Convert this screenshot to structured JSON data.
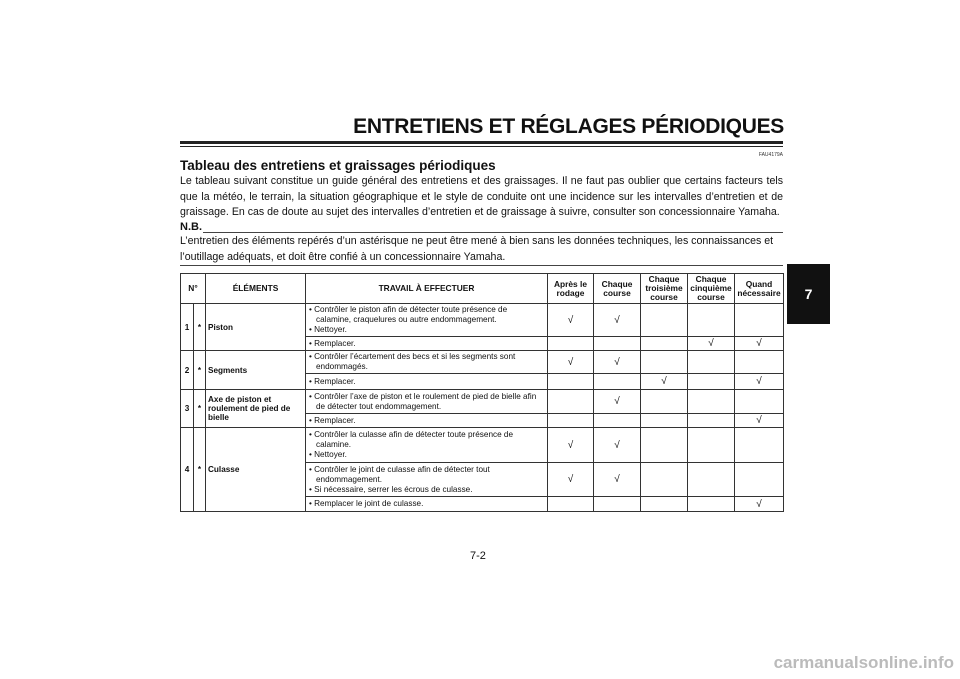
{
  "header": {
    "title": "ENTRETIENS ET RÉGLAGES PÉRIODIQUES",
    "code": "FAU4179A"
  },
  "section": {
    "title": "Tableau des entretiens et graissages périodiques",
    "intro": "Le tableau suivant constitue un guide général des entretiens et des graissages. Il ne faut pas oublier que certains facteurs tels que la météo, le terrain, la situation géographique et le style de conduite ont une incidence sur les intervalles d’entretien et de graissage. En cas de doute au sujet des intervalles d’entretien et de graissage à suivre, consulter son concessionnaire Yamaha.",
    "nb_label": "N.B.",
    "nb_text": "L’entretien des éléments repérés d’un astérisque ne peut être mené à bien sans les données techniques, les connaissances et l’outillage adéquats, et doit être confié à un concessionnaire Yamaha."
  },
  "table": {
    "headers": [
      "N°",
      "ÉLÉMENTS",
      "TRAVAIL À EFFECTUER",
      "Après le rodage",
      "Chaque course",
      "Chaque troisième course",
      "Chaque cinquième course",
      "Quand nécessaire"
    ],
    "check_mark": "√",
    "rows": [
      {
        "num": "1",
        "star": "*",
        "element": "Piston",
        "tasks": [
          {
            "bullets": [
              "Contrôler le piston afin de détecter toute présence de calamine, craquelures ou autre endommagement.",
              "Nettoyer."
            ],
            "checks": [
              true,
              true,
              false,
              false,
              false
            ]
          },
          {
            "bullets": [
              "Remplacer."
            ],
            "checks": [
              false,
              false,
              false,
              true,
              true
            ]
          }
        ]
      },
      {
        "num": "2",
        "star": "*",
        "element": "Segments",
        "tasks": [
          {
            "bullets": [
              "Contrôler l’écartement des becs et si les segments sont endommagés."
            ],
            "checks": [
              true,
              true,
              false,
              false,
              false
            ]
          },
          {
            "bullets": [
              "Remplacer."
            ],
            "checks": [
              false,
              false,
              true,
              false,
              true
            ]
          }
        ]
      },
      {
        "num": "3",
        "star": "*",
        "element": "Axe de piston et roulement de pied de bielle",
        "tasks": [
          {
            "bullets": [
              "Contrôler l’axe de piston et le roulement de pied de bielle afin de détecter tout endommagement."
            ],
            "checks": [
              false,
              true,
              false,
              false,
              false
            ]
          },
          {
            "bullets": [
              "Remplacer."
            ],
            "checks": [
              false,
              false,
              false,
              false,
              true
            ]
          }
        ]
      },
      {
        "num": "4",
        "star": "*",
        "element": "Culasse",
        "tasks": [
          {
            "bullets": [
              "Contrôler la culasse afin de détecter toute présence de calamine.",
              "Nettoyer."
            ],
            "checks": [
              true,
              true,
              false,
              false,
              false
            ]
          },
          {
            "bullets": [
              "Contrôler le joint de culasse afin de détecter tout endommagement.",
              "Si nécessaire, serrer les écrous de culasse."
            ],
            "checks": [
              true,
              true,
              false,
              false,
              false
            ]
          },
          {
            "bullets": [
              "Remplacer le joint de culasse."
            ],
            "checks": [
              false,
              false,
              false,
              false,
              true
            ]
          }
        ]
      }
    ]
  },
  "chapter_tab": "7",
  "page_number": "7-2",
  "watermark": "carmanualsonline.info"
}
